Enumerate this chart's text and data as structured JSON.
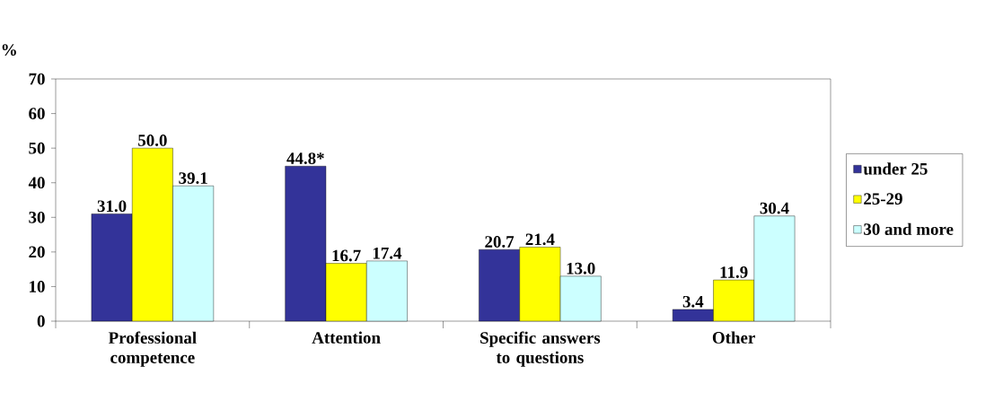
{
  "chart_data": {
    "type": "bar",
    "ylabel": "%",
    "categories": [
      "Professional competence",
      "Attention",
      "Specific answers to questions",
      "Other"
    ],
    "series": [
      {
        "name": "under 25",
        "color": "#333399",
        "values": [
          31.0,
          44.8,
          20.7,
          3.4
        ],
        "value_labels": [
          "31.0",
          "44.8*",
          "20.7",
          "3.4"
        ]
      },
      {
        "name": "25-29",
        "color": "#ffff00",
        "values": [
          50.0,
          16.7,
          21.4,
          11.9
        ],
        "value_labels": [
          "50.0",
          "16.7",
          "21.4",
          "11.9"
        ]
      },
      {
        "name": "30 and more",
        "color": "#ccffff",
        "values": [
          39.1,
          17.4,
          13.0,
          30.4
        ],
        "value_labels": [
          "39.1",
          "17.4",
          "13.0",
          "30.4"
        ]
      }
    ],
    "ylim": [
      0,
      70
    ],
    "yticks": [
      0,
      10,
      20,
      30,
      40,
      50,
      60,
      70
    ],
    "grid": false,
    "legend": "right"
  }
}
